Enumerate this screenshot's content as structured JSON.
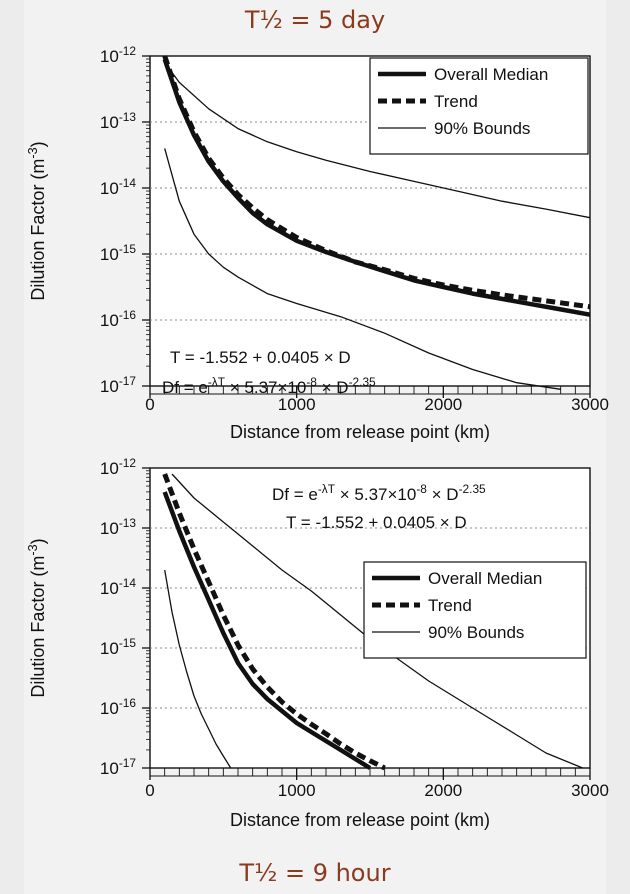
{
  "captions": {
    "top": "T½ = 5 day",
    "bottom": "T½ = 9 hour"
  },
  "chart_data": [
    {
      "type": "line",
      "title": "T½ = 5 day",
      "xlabel": "Distance from release point (km)",
      "ylabel": "Dilution Factor (m",
      "ylabel_exponent": "-3",
      "ylabel_close": ")",
      "x_scale": "linear",
      "y_scale": "log",
      "xlim": [
        0,
        3000
      ],
      "ylim_exponent": [
        -17,
        -12
      ],
      "x_ticks": [
        0,
        1000,
        2000,
        3000
      ],
      "y_tick_exponents": [
        -12,
        -13,
        -14,
        -15,
        -16,
        -17
      ],
      "grid": "horizontal dotted",
      "legend_position": "top-right",
      "legend": [
        "Overall Median",
        "Trend",
        "90% Bounds"
      ],
      "annotations": [
        {
          "text": "T = -1.552 + 0.0405 × D"
        },
        {
          "text": "Df = e",
          "sup1": "-λT",
          "text2": " × 5.37×10",
          "sup2": "-8",
          "text3": " × D",
          "sup3": "-2.35"
        }
      ],
      "series": [
        {
          "name": "Overall Median",
          "style": "thick-solid",
          "x": [
            100,
            200,
            300,
            400,
            500,
            600,
            700,
            800,
            1000,
            1200,
            1400,
            1600,
            1800,
            2000,
            2200,
            2400,
            2600,
            2800,
            3000
          ],
          "log10_y": [
            -12.05,
            -12.7,
            -13.2,
            -13.6,
            -13.9,
            -14.15,
            -14.38,
            -14.55,
            -14.8,
            -14.97,
            -15.12,
            -15.26,
            -15.4,
            -15.5,
            -15.6,
            -15.68,
            -15.76,
            -15.84,
            -15.92
          ]
        },
        {
          "name": "Trend",
          "style": "dashed",
          "x": [
            100,
            200,
            300,
            400,
            500,
            600,
            700,
            800,
            1000,
            1200,
            1400,
            1600,
            1800,
            2000,
            2200,
            2400,
            2600,
            2800,
            3000
          ],
          "log10_y": [
            -12.0,
            -12.65,
            -13.15,
            -13.55,
            -13.85,
            -14.1,
            -14.3,
            -14.48,
            -14.75,
            -14.95,
            -15.12,
            -15.24,
            -15.37,
            -15.47,
            -15.55,
            -15.62,
            -15.68,
            -15.74,
            -15.8
          ]
        },
        {
          "name": "90% Bounds",
          "style": "thin-solid",
          "x": [
            100,
            200,
            400,
            600,
            800,
            1000,
            1200,
            1500,
            1800,
            2100,
            2400,
            2700,
            3000
          ],
          "log10_y": [
            -12.1,
            -12.4,
            -12.8,
            -13.1,
            -13.3,
            -13.45,
            -13.58,
            -13.75,
            -13.9,
            -14.05,
            -14.2,
            -14.32,
            -14.45
          ]
        },
        {
          "name": "",
          "style": "thin-solid",
          "x": [
            100,
            200,
            300,
            400,
            500,
            600,
            800,
            1000,
            1300,
            1600,
            1900,
            2200,
            2500,
            2800
          ],
          "log10_y": [
            -13.4,
            -14.2,
            -14.7,
            -15.0,
            -15.2,
            -15.35,
            -15.6,
            -15.75,
            -15.95,
            -16.2,
            -16.5,
            -16.75,
            -16.95,
            -17.05
          ]
        }
      ]
    },
    {
      "type": "line",
      "title": "T½ = 9 hour",
      "xlabel": "Distance from release point (km)",
      "ylabel": "Dilution Factor (m",
      "ylabel_exponent": "-3",
      "ylabel_close": ")",
      "x_scale": "linear",
      "y_scale": "log",
      "xlim": [
        0,
        3000
      ],
      "ylim_exponent": [
        -17,
        -12
      ],
      "x_ticks": [
        0,
        1000,
        2000,
        3000
      ],
      "y_tick_exponents": [
        -12,
        -13,
        -14,
        -15,
        -16,
        -17
      ],
      "grid": "horizontal dotted",
      "legend_position": "middle-right",
      "legend": [
        "Overall Median",
        "Trend",
        "90% Bounds"
      ],
      "annotations": [
        {
          "text": "Df = e",
          "sup1": "-λT",
          "text2": " × 5.37×10",
          "sup2": "-8",
          "text3": " × D",
          "sup3": "-2.35"
        },
        {
          "text": "T = -1.552 + 0.0405 × D"
        }
      ],
      "series": [
        {
          "name": "Overall Median",
          "style": "thick-solid",
          "x": [
            100,
            200,
            300,
            400,
            500,
            600,
            700,
            800,
            900,
            1000,
            1100,
            1200,
            1300,
            1400,
            1500
          ],
          "log10_y": [
            -12.4,
            -13.05,
            -13.65,
            -14.2,
            -14.75,
            -15.25,
            -15.6,
            -15.85,
            -16.05,
            -16.25,
            -16.4,
            -16.55,
            -16.7,
            -16.85,
            -17.0
          ]
        },
        {
          "name": "Trend",
          "style": "dashed",
          "x": [
            100,
            200,
            300,
            400,
            500,
            600,
            700,
            800,
            900,
            1000,
            1100,
            1200,
            1300,
            1400,
            1500,
            1600
          ],
          "log10_y": [
            -12.1,
            -12.75,
            -13.35,
            -13.9,
            -14.45,
            -14.95,
            -15.35,
            -15.65,
            -15.9,
            -16.1,
            -16.27,
            -16.43,
            -16.6,
            -16.75,
            -16.88,
            -17.0
          ]
        },
        {
          "name": "90% Bounds",
          "style": "thin-solid",
          "x": [
            150,
            300,
            500,
            700,
            900,
            1100,
            1300,
            1500,
            1700,
            1900,
            2100,
            2300,
            2500,
            2700,
            2950
          ],
          "log10_y": [
            -12.1,
            -12.5,
            -12.9,
            -13.3,
            -13.7,
            -14.05,
            -14.45,
            -14.85,
            -15.2,
            -15.55,
            -15.85,
            -16.15,
            -16.45,
            -16.75,
            -17.0
          ]
        },
        {
          "name": "",
          "style": "thin-solid",
          "x": [
            100,
            150,
            200,
            250,
            300,
            350,
            400,
            450,
            500,
            550
          ],
          "log10_y": [
            -13.7,
            -14.4,
            -14.95,
            -15.4,
            -15.8,
            -16.1,
            -16.35,
            -16.6,
            -16.8,
            -17.0
          ]
        }
      ]
    }
  ],
  "colors": {
    "caption": "#8b3a1e",
    "ink": "#111111",
    "grid": "#888888"
  }
}
